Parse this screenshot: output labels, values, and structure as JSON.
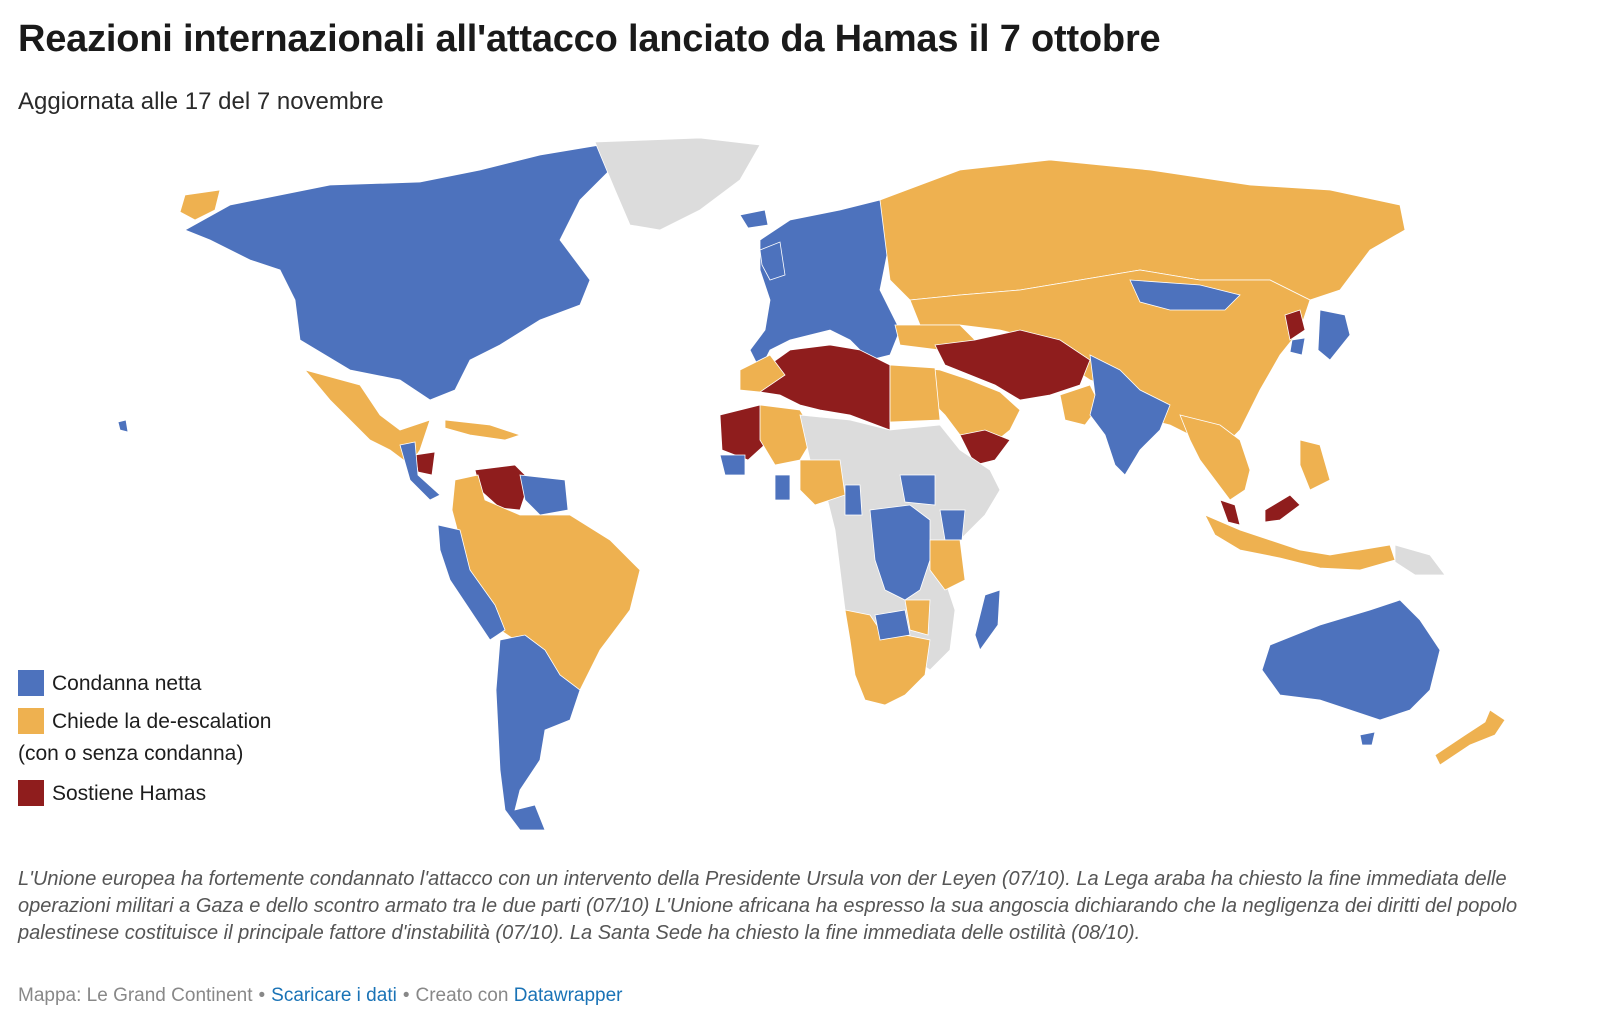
{
  "title": "Reazioni internazionali all'attacco lanciato da Hamas il 7 ottobre",
  "subtitle": "Aggiornata alle 17 del 7 novembre",
  "colors": {
    "condemn": "#4d72bd",
    "deescalation": "#eeb150",
    "supports": "#8f1d1d",
    "nodata": "#dcdcdc",
    "sea": "#ffffff"
  },
  "legend": [
    {
      "key": "condemn",
      "label": "Condanna netta",
      "color": "#4d72bd"
    },
    {
      "key": "deescalation",
      "label": "Chiede la de-escalation",
      "label2": "(con o senza condanna)",
      "color": "#eeb150"
    },
    {
      "key": "supports",
      "label": "Sostiene Hamas",
      "color": "#8f1d1d"
    }
  ],
  "notes": "L'Unione europea ha fortemente condannato l'attacco con un intervento della Presidente Ursula von der Leyen (07/10). La Lega araba ha chiesto la fine immediata delle operazioni militari a Gaza e dello scontro armato tra le due parti (07/10) L'Unione africana ha espresso la sua angoscia dichiarando che la negligenza dei diritti del popolo palestinese costituisce il principale fattore d'instabilità (07/10). La Santa Sede ha chiesto la fine immediata delle ostilità (08/10).",
  "footer": {
    "source_prefix": "Mappa: Le Grand Continent",
    "download_label": "Scaricare i dati",
    "created_prefix": "Creato con",
    "tool_label": "Datawrapper"
  }
}
